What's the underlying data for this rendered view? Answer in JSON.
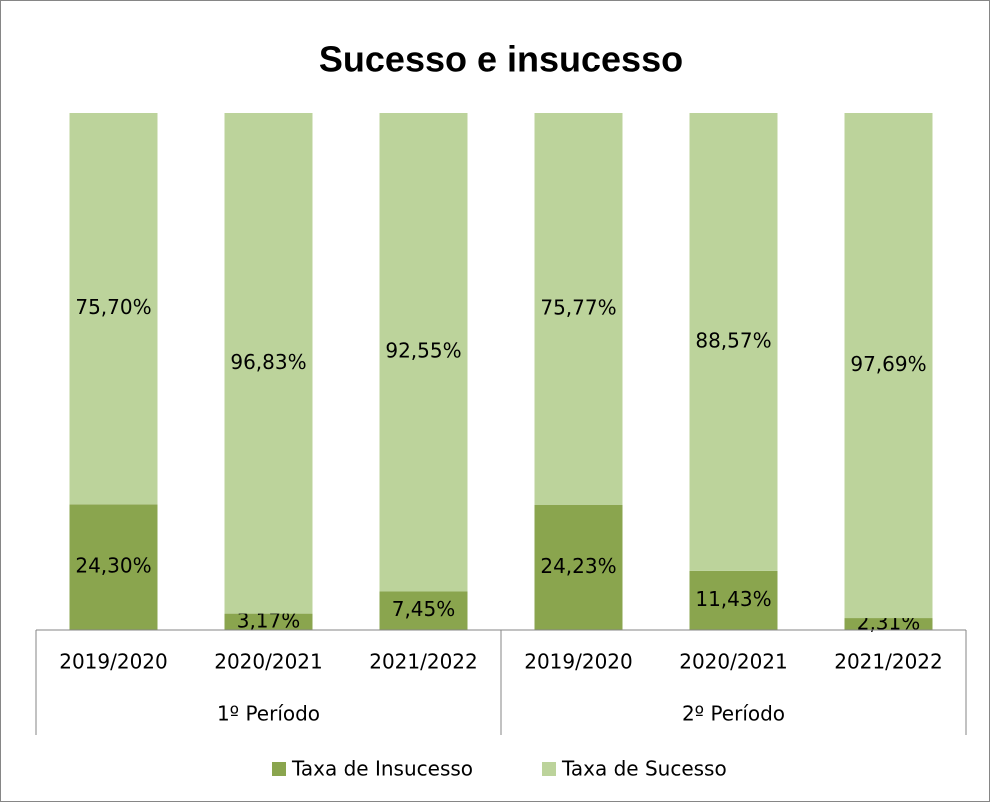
{
  "chart_data": {
    "type": "stacked_bar",
    "title": "Sucesso e insucesso",
    "groups": [
      {
        "name": "1º Período",
        "categories": [
          "2019/2020",
          "2020/2021",
          "2021/2022"
        ]
      },
      {
        "name": "2º Período",
        "categories": [
          "2019/2020",
          "2020/2021",
          "2021/2022"
        ]
      }
    ],
    "series": [
      {
        "name": "Taxa de Insucesso",
        "color": "#8aa54e",
        "values": [
          24.3,
          3.17,
          7.45,
          24.23,
          11.43,
          2.31
        ],
        "value_labels": [
          "24,30%",
          "3,17%",
          "7,45%",
          "24,23%",
          "11,43%",
          "2,31%"
        ]
      },
      {
        "name": "Taxa de Sucesso",
        "color": "#bcd39b",
        "values": [
          75.7,
          96.83,
          92.55,
          75.77,
          88.57,
          97.69
        ],
        "value_labels": [
          "75,70%",
          "96,83%",
          "92,55%",
          "75,77%",
          "88,57%",
          "97,69%"
        ]
      }
    ],
    "ylim": [
      0,
      100
    ],
    "legend": "bottom"
  }
}
